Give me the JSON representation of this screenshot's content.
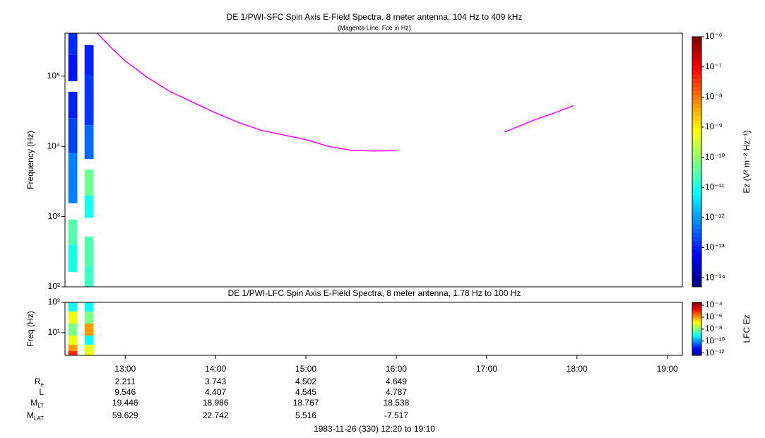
{
  "chart_data": [
    {
      "type": "spectrogram",
      "title": "DE 1/PWI-SFC  Spin Axis E-Field Spectra, 8 meter antenna, 104 Hz to 409 kHz",
      "subtitle": "(Magenta Line: Fce in Hz)",
      "ylabel": "Frequency (Hz)",
      "ylog": true,
      "xlim": [
        12.3333,
        19.1667
      ],
      "ylim": [
        100,
        409000
      ],
      "yticks": [
        {
          "value": 100,
          "label": "10²"
        },
        {
          "value": 1000,
          "label": "10³"
        },
        {
          "value": 10000,
          "label": "10⁴"
        },
        {
          "value": 100000,
          "label": "10⁵"
        }
      ],
      "zlabel": "Ez (V² m⁻² Hz⁻¹)",
      "zlim": [
        5e-15,
        1e-06
      ],
      "zticks": [
        {
          "value": 1e-06,
          "label": "10⁻⁶"
        },
        {
          "value": 1e-07,
          "label": "10⁻⁷"
        },
        {
          "value": 1e-08,
          "label": "10⁻⁸"
        },
        {
          "value": 1e-09,
          "label": "10⁻⁹"
        },
        {
          "value": 1e-10,
          "label": "10⁻¹⁰"
        },
        {
          "value": 1e-11,
          "label": "10⁻¹¹"
        },
        {
          "value": 1e-12,
          "label": "10⁻¹²"
        },
        {
          "value": 1e-13,
          "label": "10⁻¹³"
        },
        {
          "value": 1e-14,
          "label": "10⁻¹⁴"
        }
      ],
      "cells": [
        {
          "t": [
            12.37,
            12.47
          ],
          "f": [
            200000,
            409000
          ],
          "z": 1.2e-13
        },
        {
          "t": [
            12.37,
            12.47
          ],
          "f": [
            85000,
            200000
          ],
          "z": 8e-14
        },
        {
          "t": [
            12.37,
            12.47
          ],
          "f": [
            25000,
            60000
          ],
          "z": 1e-13
        },
        {
          "t": [
            12.37,
            12.47
          ],
          "f": [
            8000,
            25000
          ],
          "z": 1.8e-13
        },
        {
          "t": [
            12.37,
            12.47
          ],
          "f": [
            1550,
            8000
          ],
          "z": 6e-13
        },
        {
          "t": [
            12.37,
            12.47
          ],
          "f": [
            400,
            910
          ],
          "z": 3e-11
        },
        {
          "t": [
            12.37,
            12.47
          ],
          "f": [
            163,
            400
          ],
          "z": 1e-11
        },
        {
          "t": [
            12.55,
            12.65
          ],
          "f": [
            100000,
            276000
          ],
          "z": 1e-13
        },
        {
          "t": [
            12.55,
            12.65
          ],
          "f": [
            20000,
            100000
          ],
          "z": 1.5e-13
        },
        {
          "t": [
            12.55,
            12.65
          ],
          "f": [
            6600,
            20000
          ],
          "z": 4e-13
        },
        {
          "t": [
            12.55,
            12.65
          ],
          "f": [
            2000,
            4700
          ],
          "z": 5e-11
        },
        {
          "t": [
            12.55,
            12.65
          ],
          "f": [
            960,
            2000
          ],
          "z": 1e-11
        },
        {
          "t": [
            12.55,
            12.65
          ],
          "f": [
            200,
            520
          ],
          "z": 3e-11
        },
        {
          "t": [
            12.55,
            12.65
          ],
          "f": [
            100,
            200
          ],
          "z": 2e-11
        }
      ],
      "line": {
        "color": "#ff00ff",
        "x": [
          12.69,
          12.85,
          13.0,
          13.25,
          13.5,
          14.0,
          14.25,
          14.5,
          15.0,
          15.25,
          15.5,
          15.75,
          16.0,
          16.6,
          17.2,
          17.5,
          17.75,
          17.96
        ],
        "values": [
          409000,
          250000,
          165000,
          95000,
          60000,
          30000,
          22000,
          17000,
          12500,
          10000,
          8800,
          8600,
          8700,
          null,
          16000,
          23000,
          30000,
          38000
        ]
      }
    },
    {
      "type": "spectrogram",
      "title": "DE 1/PWI-LFC  Spin Axis E-Field Spectra, 8 meter antenna, 1.78 Hz to 100 Hz",
      "ylabel": "Freq (Hz)",
      "ylog": true,
      "xlim": [
        12.3333,
        19.1667
      ],
      "xticks": [
        {
          "value": 13,
          "label": "13:00"
        },
        {
          "value": 14,
          "label": "14:00"
        },
        {
          "value": 15,
          "label": "15:00"
        },
        {
          "value": 16,
          "label": "16:00"
        },
        {
          "value": 17,
          "label": "17:00"
        },
        {
          "value": 18,
          "label": "18:00"
        },
        {
          "value": 19,
          "label": "19:00"
        }
      ],
      "ylim": [
        1.78,
        100
      ],
      "yticks": [
        {
          "value": 10,
          "label": "10¹"
        },
        {
          "value": 100,
          "label": "10²"
        }
      ],
      "zlabel": "LFC Ez",
      "zlim": [
        4e-13,
        0.0003
      ],
      "zticks": [
        {
          "value": 0.0001,
          "label": "10⁻⁴"
        },
        {
          "value": 1e-06,
          "label": "10⁻⁶"
        },
        {
          "value": 1e-08,
          "label": "10⁻⁸"
        },
        {
          "value": 1e-10,
          "label": "10⁻¹⁰"
        },
        {
          "value": 1e-12,
          "label": "10⁻¹²"
        }
      ],
      "cells": [
        {
          "t": [
            12.37,
            12.47
          ],
          "f": [
            50,
            100
          ],
          "z": 1e-09
        },
        {
          "t": [
            12.37,
            12.47
          ],
          "f": [
            20,
            50
          ],
          "z": 1e-07
        },
        {
          "t": [
            12.37,
            12.47
          ],
          "f": [
            8,
            20
          ],
          "z": 1e-08
        },
        {
          "t": [
            12.37,
            12.47
          ],
          "f": [
            4,
            8
          ],
          "z": 1e-07
        },
        {
          "t": [
            12.37,
            12.47
          ],
          "f": [
            2.5,
            4
          ],
          "z": 1e-06
        },
        {
          "t": [
            12.37,
            12.47
          ],
          "f": [
            1.78,
            2.5
          ],
          "z": 1e-05
        },
        {
          "t": [
            12.55,
            12.65
          ],
          "f": [
            50,
            100
          ],
          "z": 1e-09
        },
        {
          "t": [
            12.55,
            12.65
          ],
          "f": [
            20,
            50
          ],
          "z": 1e-08
        },
        {
          "t": [
            12.55,
            12.65
          ],
          "f": [
            8,
            20
          ],
          "z": 1e-06
        },
        {
          "t": [
            12.55,
            12.65
          ],
          "f": [
            4,
            8
          ],
          "z": 1e-09
        },
        {
          "t": [
            12.55,
            12.65
          ],
          "f": [
            1.78,
            4
          ],
          "z": 1e-07
        }
      ]
    }
  ],
  "ephemeris": [
    {
      "label": "R",
      "sub": "e",
      "values": [
        2.211,
        3.743,
        4.502,
        4.649
      ]
    },
    {
      "label": "L",
      "values": [
        9.546,
        4.407,
        4.545,
        4.787
      ]
    },
    {
      "label": "M",
      "sub": "LT",
      "values": [
        19.446,
        18.986,
        18.767,
        18.538
      ]
    },
    {
      "label": "M",
      "sub": "LAT",
      "values": [
        59.629,
        22.742,
        5.516,
        -7.517
      ]
    }
  ],
  "footer": "1983-11-26 (330) 12:20 to 19:10"
}
